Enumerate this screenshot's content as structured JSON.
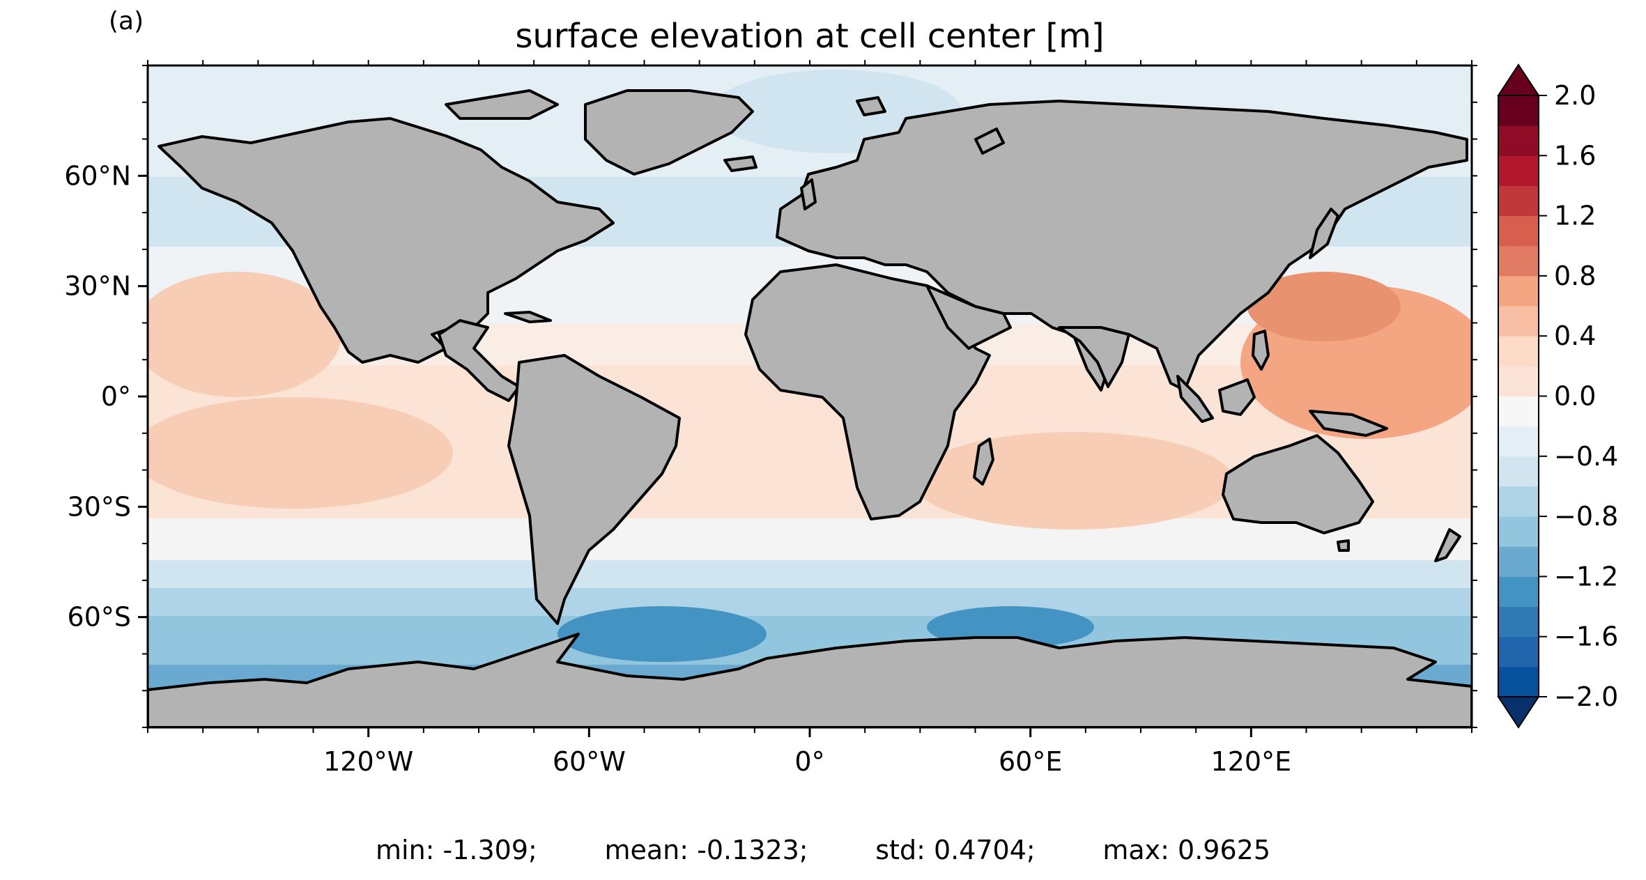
{
  "panel_label": "(a)",
  "title": "surface elevation at cell center [m]",
  "colors": {
    "land": "#b3b3b3",
    "coast": "#000000",
    "ice": "#ffffff",
    "colorbar_levels": [
      "#08306b",
      "#08519c",
      "#2166ac",
      "#2f79b5",
      "#4393c3",
      "#6aa9d0",
      "#92c5de",
      "#b0d4e7",
      "#d1e5f0",
      "#e3eef5",
      "#f7f7f7",
      "#fbe3d5",
      "#fddbc7",
      "#f8bfa4",
      "#f4a582",
      "#e27b63",
      "#d6604d",
      "#c1383b",
      "#b2182b",
      "#8e0c25",
      "#67001f"
    ]
  },
  "map": {
    "projection": "plate carree",
    "lon_range": [
      -180,
      180
    ],
    "lat_range": [
      -90,
      90
    ],
    "x_ticks": [
      {
        "value": -120,
        "label": "120°W"
      },
      {
        "value": -60,
        "label": "60°W"
      },
      {
        "value": 0,
        "label": "0°"
      },
      {
        "value": 60,
        "label": "60°E"
      },
      {
        "value": 120,
        "label": "120°E"
      }
    ],
    "y_ticks": [
      {
        "value": 60,
        "label": "60°N"
      },
      {
        "value": 30,
        "label": "30°N"
      },
      {
        "value": 0,
        "label": "0°"
      },
      {
        "value": -30,
        "label": "30°S"
      },
      {
        "value": -60,
        "label": "60°S"
      }
    ]
  },
  "colorbar": {
    "range": [
      -2.0,
      2.0
    ],
    "step": 0.2,
    "extend": "both",
    "tick_labels": [
      {
        "value": 2.0,
        "label": "2.0"
      },
      {
        "value": 1.6,
        "label": "1.6"
      },
      {
        "value": 1.2,
        "label": "1.2"
      },
      {
        "value": 0.8,
        "label": "0.8"
      },
      {
        "value": 0.4,
        "label": "0.4"
      },
      {
        "value": 0.0,
        "label": "0.0"
      },
      {
        "value": -0.4,
        "label": "−0.4"
      },
      {
        "value": -0.8,
        "label": "−0.8"
      },
      {
        "value": -1.2,
        "label": "−1.2"
      },
      {
        "value": -1.6,
        "label": "−1.6"
      },
      {
        "value": -2.0,
        "label": "−2.0"
      }
    ]
  },
  "stats": {
    "min": "min: -1.309;",
    "mean": "mean: -0.1323;",
    "std": "std: 0.4704;",
    "max": "max: 0.9625"
  }
}
